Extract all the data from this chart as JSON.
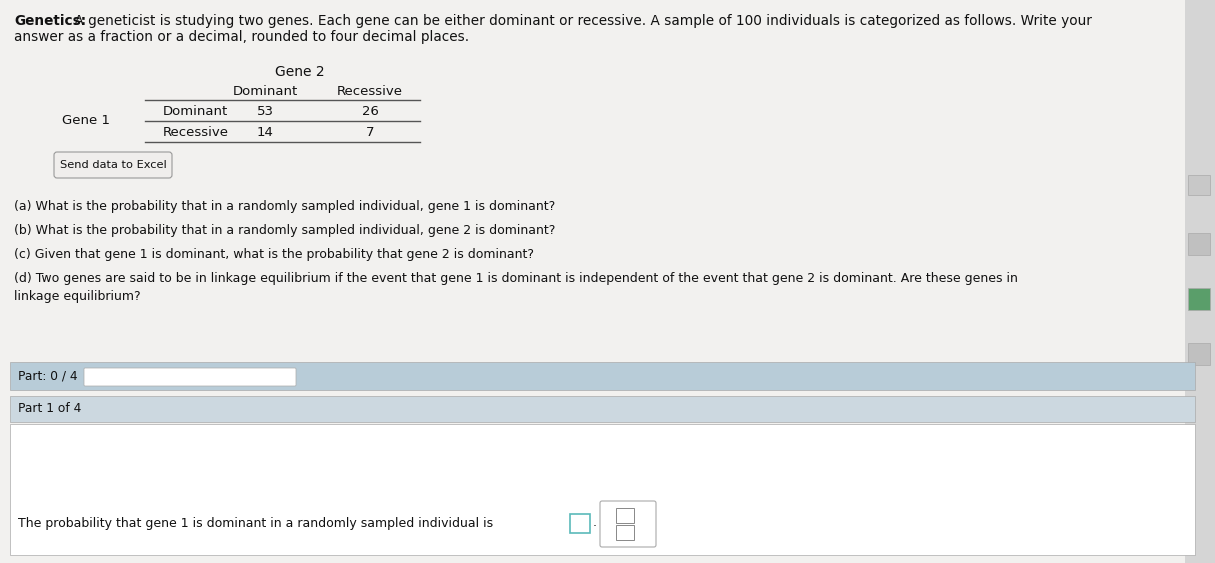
{
  "page_bg": "#e8e8e8",
  "content_bg": "#f2f1ef",
  "title_bold": "Genetics:",
  "title_rest_line1": " A geneticist is studying two genes. Each gene can be either dominant or recessive. A sample of 100 individuals is categorized as follows. Write your",
  "title_line2": "answer as a fraction or a decimal, rounded to four decimal places.",
  "gene2_label": "Gene 2",
  "col_headers": [
    "Dominant",
    "Recessive"
  ],
  "row_headers": [
    "Dominant",
    "Recessive"
  ],
  "gene1_label": "Gene 1",
  "table_values": [
    [
      53,
      26
    ],
    [
      14,
      7
    ]
  ],
  "send_excel_btn": "Send data to Excel",
  "questions": [
    "(a) What is the probability that in a randomly sampled individual, gene 1 is dominant?",
    "(b) What is the probability that in a randomly sampled individual, gene 2 is dominant?",
    "(c) Given that gene 1 is dominant, what is the probability that gene 2 is dominant?",
    "(d) Two genes are said to be in linkage equilibrium if the event that gene 1 is dominant is independent of the event that gene 2 is dominant. Are these genes in",
    "linkage equilibrium?"
  ],
  "progress_label": "Part: 0 / 4",
  "part_label": "Part 1 of 4",
  "answer_text": "The probability that gene 1 is dominant in a randomly sampled individual is",
  "progress_bg": "#b8ccd8",
  "part_bg": "#ccd8e0",
  "answer_section_bg": "#f5f4f2",
  "right_icons_bg": "#e0e0e0",
  "input_box_color": "#5bbaba",
  "fraction_box_color": "#c8c8c8"
}
